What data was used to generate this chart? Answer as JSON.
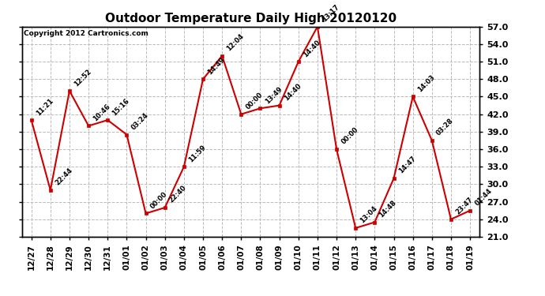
{
  "title": "Outdoor Temperature Daily High 20120120",
  "copyright": "Copyright 2012 Cartronics.com",
  "x_labels": [
    "12/27",
    "12/28",
    "12/29",
    "12/30",
    "12/31",
    "01/01",
    "01/02",
    "01/03",
    "01/04",
    "01/05",
    "01/06",
    "01/07",
    "01/08",
    "01/09",
    "01/10",
    "01/11",
    "01/12",
    "01/13",
    "01/14",
    "01/15",
    "01/16",
    "01/17",
    "01/18",
    "01/19"
  ],
  "y_values": [
    41.0,
    29.0,
    46.0,
    40.0,
    41.0,
    38.5,
    25.0,
    26.0,
    33.0,
    48.0,
    52.0,
    42.0,
    43.0,
    43.5,
    51.0,
    57.0,
    36.0,
    22.5,
    23.5,
    31.0,
    45.0,
    37.5,
    24.0,
    25.5
  ],
  "time_labels": [
    "11:21",
    "22:44",
    "12:52",
    "10:46",
    "15:16",
    "03:24",
    "00:00",
    "22:40",
    "11:59",
    "14:49",
    "12:04",
    "00:00",
    "13:49",
    "14:40",
    "14:40",
    "13:17",
    "00:00",
    "13:04",
    "14:48",
    "14:47",
    "14:03",
    "03:28",
    "23:47",
    "01:44"
  ],
  "line_color": "#cc0000",
  "marker_color": "#cc0000",
  "bg_color": "#ffffff",
  "grid_color": "#bbbbbb",
  "y_min": 21.0,
  "y_max": 57.0,
  "y_ticks": [
    21.0,
    24.0,
    27.0,
    30.0,
    33.0,
    36.0,
    39.0,
    42.0,
    45.0,
    48.0,
    51.0,
    54.0,
    57.0
  ]
}
